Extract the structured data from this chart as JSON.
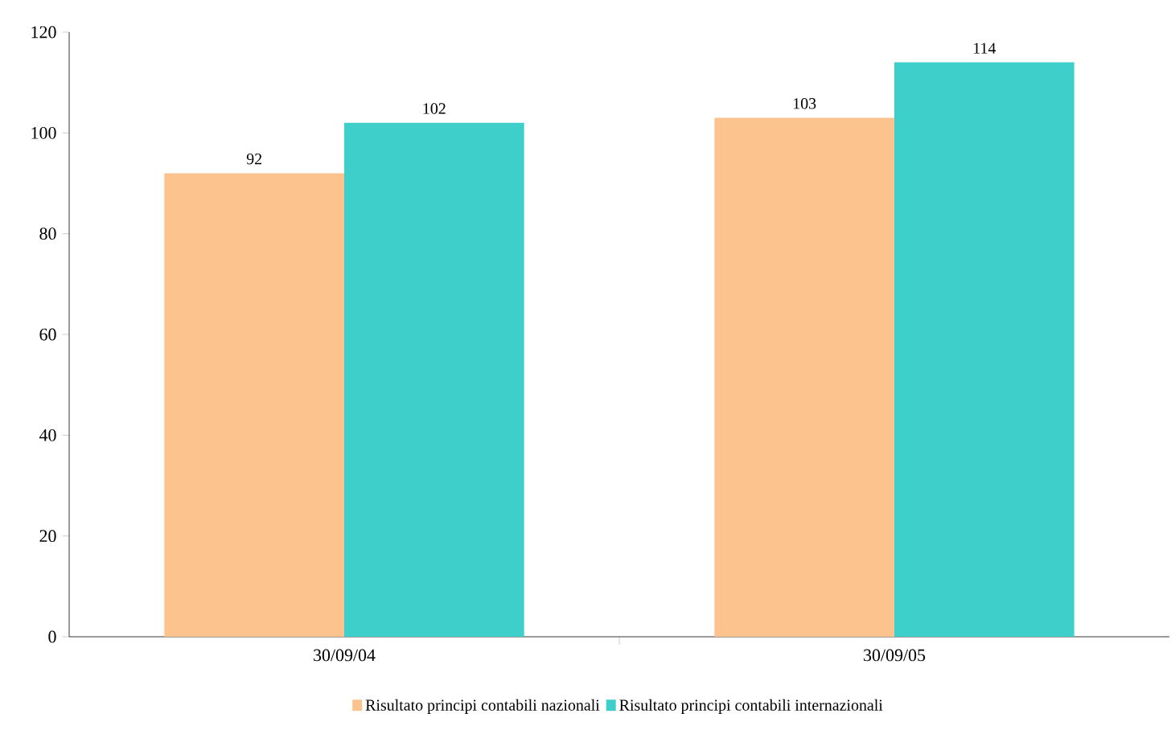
{
  "chart_data": {
    "type": "bar",
    "categories": [
      "30/09/04",
      "30/09/05"
    ],
    "series": [
      {
        "name": "Risultato principi contabili nazionali",
        "color": "#fcc38f",
        "values": [
          92,
          103
        ]
      },
      {
        "name": "Risultato principi contabili internazionali",
        "color": "#3ecfcb",
        "values": [
          102,
          114
        ]
      }
    ],
    "ylim": [
      0,
      120
    ],
    "yticks": [
      0,
      20,
      40,
      60,
      80,
      100,
      120
    ],
    "data_labels": true,
    "legend": "bottom",
    "grid": false
  }
}
